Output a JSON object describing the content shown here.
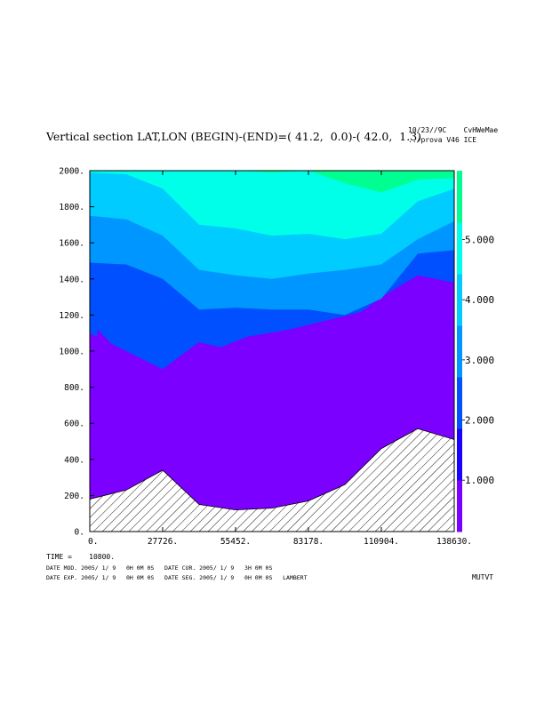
{
  "header": {
    "title": "Vertical section LAT,LON (BEGIN)-(END)=( 41.2,  0.0)-( 42.0,  1.3)",
    "date": "10/23//9C    CvHWeMae",
    "program": "../prova V46 ICE"
  },
  "footer": {
    "time_line": "TIME =    10800.",
    "mod_line_1": "DATE MOD. 2005/ 1/ 9   0H 0M 0S   DATE CUR. 2005/ 1/ 9   3H 0M 0S",
    "mod_line_2": "DATE EXP. 2005/ 1/ 9   0H 0M 0S   DATE SEG. 2005/ 1/ 9   0H 0M 0S   LAMBERT",
    "variable": "MUTVT"
  },
  "colors": {
    "levels": [
      "#7b00ff",
      "#1a00ff",
      "#0050ff",
      "#0096ff",
      "#00ccff",
      "#00ffe8",
      "#00ff90"
    ],
    "terrain_hatch": "#000000"
  },
  "chart_data": {
    "type": "heatmap",
    "subtype": "filled-contour vertical cross-section",
    "x_ticks": [
      "0.",
      "27726.",
      "55452.",
      "83178.",
      "110904.",
      "138630."
    ],
    "y_ticks": [
      "0.",
      "200.",
      "400.",
      "600.",
      "800.",
      "1000.",
      "1200.",
      "1400.",
      "1600.",
      "1800.",
      "2000."
    ],
    "xlim": [
      0,
      138630
    ],
    "ylim": [
      0,
      2000
    ],
    "colorbar": {
      "labels": [
        "1.000",
        "2.000",
        "3.000",
        "4.000",
        "5.000"
      ],
      "range": [
        0,
        6
      ]
    },
    "x": [
      0,
      13863,
      27726,
      41589,
      55452,
      69315,
      83178,
      97041,
      110904,
      124767,
      138630
    ],
    "terrain": [
      180,
      230,
      340,
      150,
      120,
      130,
      170,
      260,
      460,
      570,
      510
    ],
    "boundaries": [
      {
        "level": 1,
        "z": [
          1100,
          1000,
          900,
          1050,
          1000,
          1000,
          1050,
          1150,
          1300,
          1420,
          1380
        ]
      },
      {
        "level": 2,
        "z": [
          1490,
          1480,
          1400,
          1230,
          1240,
          1230,
          1230,
          1200,
          1290,
          1540,
          1560
        ]
      },
      {
        "level": 3,
        "z": [
          1750,
          1730,
          1640,
          1450,
          1420,
          1400,
          1430,
          1450,
          1480,
          1620,
          1720
        ]
      },
      {
        "level": 4,
        "z": [
          1990,
          1980,
          1900,
          1700,
          1680,
          1640,
          1650,
          1620,
          1650,
          1830,
          1900
        ]
      },
      {
        "level": 5,
        "z": [
          2000,
          2000,
          2000,
          2000,
          2000,
          1990,
          2000,
          1930,
          1880,
          1950,
          1960
        ]
      }
    ],
    "patches": [
      {
        "level": 0,
        "kind": "lobe",
        "x": [
          0,
          3000,
          11000,
          25000,
          31000,
          28000,
          20000,
          9000,
          2000,
          0
        ],
        "z": [
          680,
          1120,
          1000,
          880,
          780,
          620,
          610,
          720,
          780,
          680
        ]
      },
      {
        "level": 0,
        "kind": "lobe",
        "x": [
          38000,
          46000,
          60000,
          76000,
          90000,
          104000,
          116000,
          128000,
          138630,
          138630,
          126000,
          114000,
          100000,
          88000,
          76000,
          62000,
          50000,
          38000
        ],
        "z": [
          900,
          1000,
          1080,
          1120,
          1170,
          1220,
          1270,
          1330,
          1330,
          1080,
          1000,
          960,
          920,
          890,
          860,
          840,
          870,
          900
        ]
      },
      {
        "level": 0,
        "kind": "band",
        "x": [
          0,
          8000,
          16000,
          26000,
          34000,
          44000,
          60000,
          78000,
          92000,
          104000
        ],
        "z": [
          390,
          330,
          320,
          300,
          250,
          190,
          160,
          190,
          230,
          310
        ]
      }
    ]
  }
}
